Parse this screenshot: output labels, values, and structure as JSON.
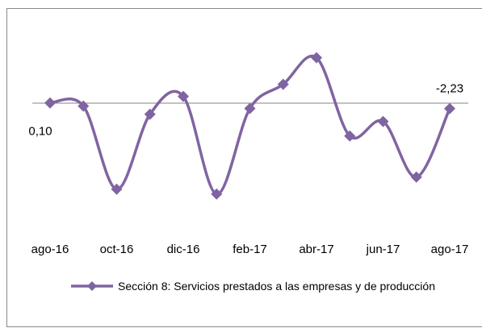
{
  "chart_data": {
    "type": "line",
    "categories": [
      "ago-16",
      null,
      "oct-16",
      null,
      "dic-16",
      null,
      "feb-17",
      null,
      "abr-17",
      null,
      "jun-17",
      null,
      "ago-17"
    ],
    "series": [
      {
        "name": "Sección 8: Servicios prestados a las empresas y de producción",
        "color": "#8064a2",
        "values": [
          0.1,
          -1.2,
          -35.6,
          -4.6,
          2.8,
          -37.6,
          -2.2,
          7.8,
          18.8,
          -13.6,
          -7.6,
          -30.6,
          -2.23
        ],
        "value_labels": [
          "0,10",
          null,
          null,
          null,
          null,
          null,
          null,
          null,
          null,
          null,
          null,
          null,
          "-2,23"
        ]
      }
    ],
    "ylim": [
      -50,
      30
    ]
  }
}
